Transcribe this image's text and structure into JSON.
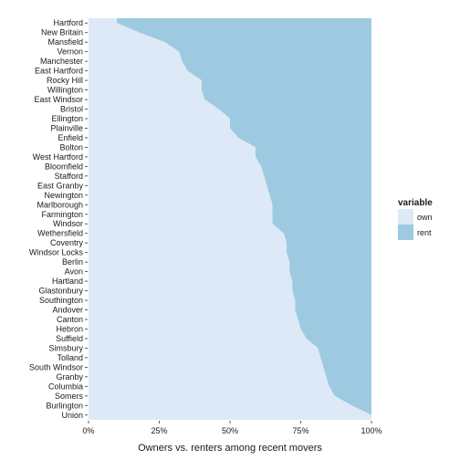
{
  "chart_data": {
    "type": "area",
    "orientation": "horizontal",
    "stacked": true,
    "percent": true,
    "categories": [
      "Hartford",
      "New Britain",
      "Mansfield",
      "Vernon",
      "Manchester",
      "East Hartford",
      "Rocky Hill",
      "Willington",
      "East Windsor",
      "Bristol",
      "Ellington",
      "Plainville",
      "Enfield",
      "Bolton",
      "West Hartford",
      "Bloomfield",
      "Stafford",
      "East Granby",
      "Newington",
      "Marlborough",
      "Farmington",
      "Windsor",
      "Wethersfield",
      "Coventry",
      "Windsor Locks",
      "Berlin",
      "Avon",
      "Hartland",
      "Glastonbury",
      "Southington",
      "Andover",
      "Canton",
      "Hebron",
      "Suffield",
      "Simsbury",
      "Tolland",
      "South Windsor",
      "Granby",
      "Columbia",
      "Somers",
      "Burlington",
      "Union"
    ],
    "series": [
      {
        "name": "own",
        "color": "#dde9f6",
        "values": [
          0.1,
          0.18,
          0.27,
          0.32,
          0.33,
          0.35,
          0.4,
          0.4,
          0.41,
          0.46,
          0.5,
          0.5,
          0.53,
          0.59,
          0.59,
          0.61,
          0.62,
          0.63,
          0.64,
          0.65,
          0.65,
          0.65,
          0.69,
          0.7,
          0.7,
          0.71,
          0.71,
          0.72,
          0.72,
          0.73,
          0.73,
          0.74,
          0.75,
          0.77,
          0.81,
          0.82,
          0.83,
          0.84,
          0.85,
          0.87,
          0.93,
          1.0
        ]
      },
      {
        "name": "rent",
        "color": "#9ecae1",
        "values": [
          0.9,
          0.82,
          0.73,
          0.68,
          0.67,
          0.65,
          0.6,
          0.6,
          0.59,
          0.54,
          0.5,
          0.5,
          0.47,
          0.41,
          0.41,
          0.39,
          0.38,
          0.37,
          0.36,
          0.35,
          0.35,
          0.35,
          0.31,
          0.3,
          0.3,
          0.29,
          0.29,
          0.28,
          0.28,
          0.27,
          0.27,
          0.26,
          0.25,
          0.23,
          0.19,
          0.18,
          0.17,
          0.16,
          0.15,
          0.13,
          0.07,
          0.0
        ]
      }
    ],
    "x_ticks": [
      "0%",
      "25%",
      "50%",
      "75%",
      "100%"
    ],
    "xlim": [
      0,
      1
    ],
    "xlabel": "Owners vs. renters among recent movers",
    "ylabel": "",
    "title": "",
    "legend": {
      "title": "variable",
      "position": "right",
      "entries": [
        "own",
        "rent"
      ]
    },
    "grid": true
  }
}
